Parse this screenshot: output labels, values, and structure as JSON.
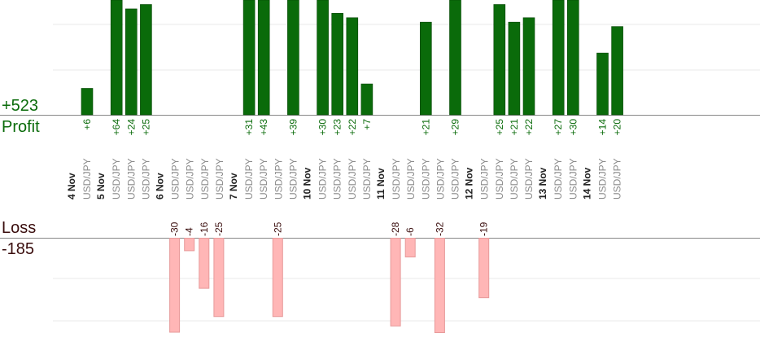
{
  "summary": {
    "profit_total": "+523",
    "profit_label": "Profit",
    "loss_label": "Loss",
    "loss_total": "-185"
  },
  "colors": {
    "profit_bar": "#0a6b0a",
    "profit_bar_edge": "#064606",
    "profit_text": "#0a6b0a",
    "loss_bar": "#ffb6b6",
    "loss_bar_edge": "#e79a9a",
    "loss_text": "#3a0d0d",
    "date_text": "#222222",
    "pair_text": "#8a8a8a",
    "gridline": "#e8e8e8",
    "baseline": "#888888"
  },
  "chart_data": {
    "type": "bar",
    "instrument": "USD/JPY",
    "days": [
      {
        "date": "4 Nov",
        "trades": [
          6
        ]
      },
      {
        "date": "5 Nov",
        "trades": [
          64,
          24,
          25
        ]
      },
      {
        "date": "6 Nov",
        "trades": [
          -30,
          -4,
          -16,
          -25
        ]
      },
      {
        "date": "7 Nov",
        "trades": [
          31,
          43,
          -25,
          39
        ]
      },
      {
        "date": "10 Nov",
        "trades": [
          30,
          23,
          22,
          7
        ]
      },
      {
        "date": "11 Nov",
        "trades": [
          -28,
          -6,
          21,
          -32,
          29
        ]
      },
      {
        "date": "12 Nov",
        "trades": [
          -19,
          25,
          21,
          22
        ]
      },
      {
        "date": "13 Nov",
        "trades": [
          27,
          30
        ]
      },
      {
        "date": "14 Nov",
        "trades": [
          14,
          20
        ]
      }
    ],
    "profit_axis_max": 26,
    "loss_axis_min": -30,
    "gridlines": true
  }
}
